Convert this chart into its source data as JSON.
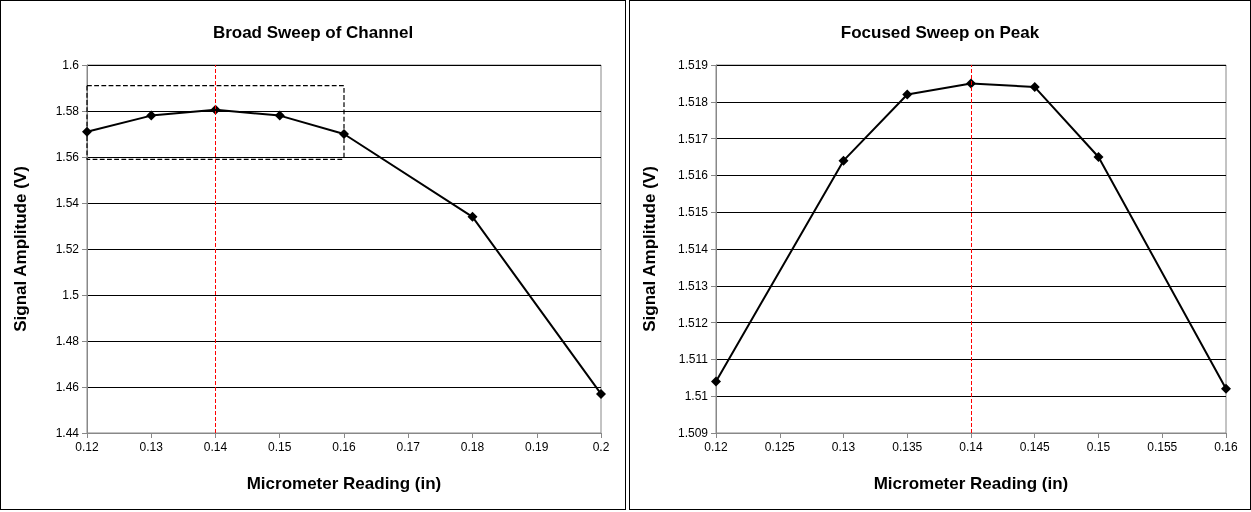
{
  "chart_data": [
    {
      "type": "line",
      "title": "Broad Sweep of Channel",
      "xlabel": "Micrometer Reading (in)",
      "ylabel": "Signal Amplitude (V)",
      "series": [
        {
          "color": "#000000",
          "x": [
            0.12,
            0.13,
            0.14,
            0.15,
            0.16,
            0.18,
            0.2
          ],
          "values": [
            1.571,
            1.578,
            1.5805,
            1.578,
            1.57,
            1.534,
            1.457
          ],
          "marker": "diamond",
          "line_style": "solid"
        },
        {
          "color": "#000000",
          "x": [
            0.12,
            0.16,
            0.16
          ],
          "values": [
            1.591,
            1.591,
            1.559
          ],
          "marker": "none",
          "line_style": "dashed"
        },
        {
          "color": "#000000",
          "x": [
            0.12,
            0.12,
            0.16
          ],
          "values": [
            1.591,
            1.559,
            1.559
          ],
          "marker": "none",
          "line_style": "dashed"
        }
      ],
      "xlim": [
        0.12,
        0.2
      ],
      "xticks": [
        0.12,
        0.13,
        0.14,
        0.15,
        0.16,
        0.17,
        0.18,
        0.19,
        0.2
      ],
      "ylim": [
        1.44,
        1.6
      ],
      "yticks": [
        1.44,
        1.46,
        1.48,
        1.5,
        1.52,
        1.54,
        1.56,
        1.58,
        1.6
      ],
      "grid": "y",
      "ref_lines": [
        {
          "axis": "x",
          "value": 0.14,
          "color": "#ff0000",
          "line_style": "dashed"
        }
      ]
    },
    {
      "type": "line",
      "title": "Focused Sweep on Peak",
      "xlabel": "Micrometer Reading (in)",
      "ylabel": "Signal Amplitude (V)",
      "series": [
        {
          "color": "#000000",
          "x": [
            0.12,
            0.13,
            0.135,
            0.14,
            0.145,
            0.15,
            0.16
          ],
          "values": [
            1.5104,
            1.5164,
            1.5182,
            1.5185,
            1.5184,
            1.5165,
            1.5102
          ],
          "marker": "diamond",
          "line_style": "solid"
        }
      ],
      "xlim": [
        0.12,
        0.16
      ],
      "xticks": [
        0.12,
        0.125,
        0.13,
        0.135,
        0.14,
        0.145,
        0.15,
        0.155,
        0.16
      ],
      "ylim": [
        1.509,
        1.519
      ],
      "yticks": [
        1.509,
        1.51,
        1.511,
        1.512,
        1.513,
        1.514,
        1.515,
        1.516,
        1.517,
        1.518,
        1.519
      ],
      "grid": "y",
      "ref_lines": [
        {
          "axis": "x",
          "value": 0.14,
          "color": "#ff0000",
          "line_style": "dashed"
        }
      ]
    }
  ]
}
